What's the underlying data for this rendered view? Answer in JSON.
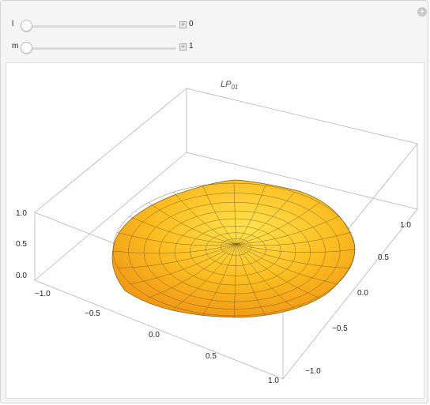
{
  "controls": {
    "l": {
      "label": "l",
      "value": "0",
      "plus_glyph": "+"
    },
    "m": {
      "label": "m",
      "value": "1",
      "plus_glyph": "+"
    },
    "corner_glyph": "+"
  },
  "plot": {
    "title_main": "LP",
    "title_sub": "01",
    "z_ticks": [
      "1.0",
      "0.5",
      "0.0"
    ],
    "x_ticks": [
      "−1.0",
      "−0.5",
      "0.0",
      "0.5",
      "1.0"
    ],
    "y_ticks": [
      "1.0",
      "0.5",
      "0.0",
      "−0.5",
      "−1.0"
    ],
    "surface_color": "#f7a81d",
    "surface_highlight": "#ffd84a",
    "mesh_color": "#5a4a20"
  }
}
